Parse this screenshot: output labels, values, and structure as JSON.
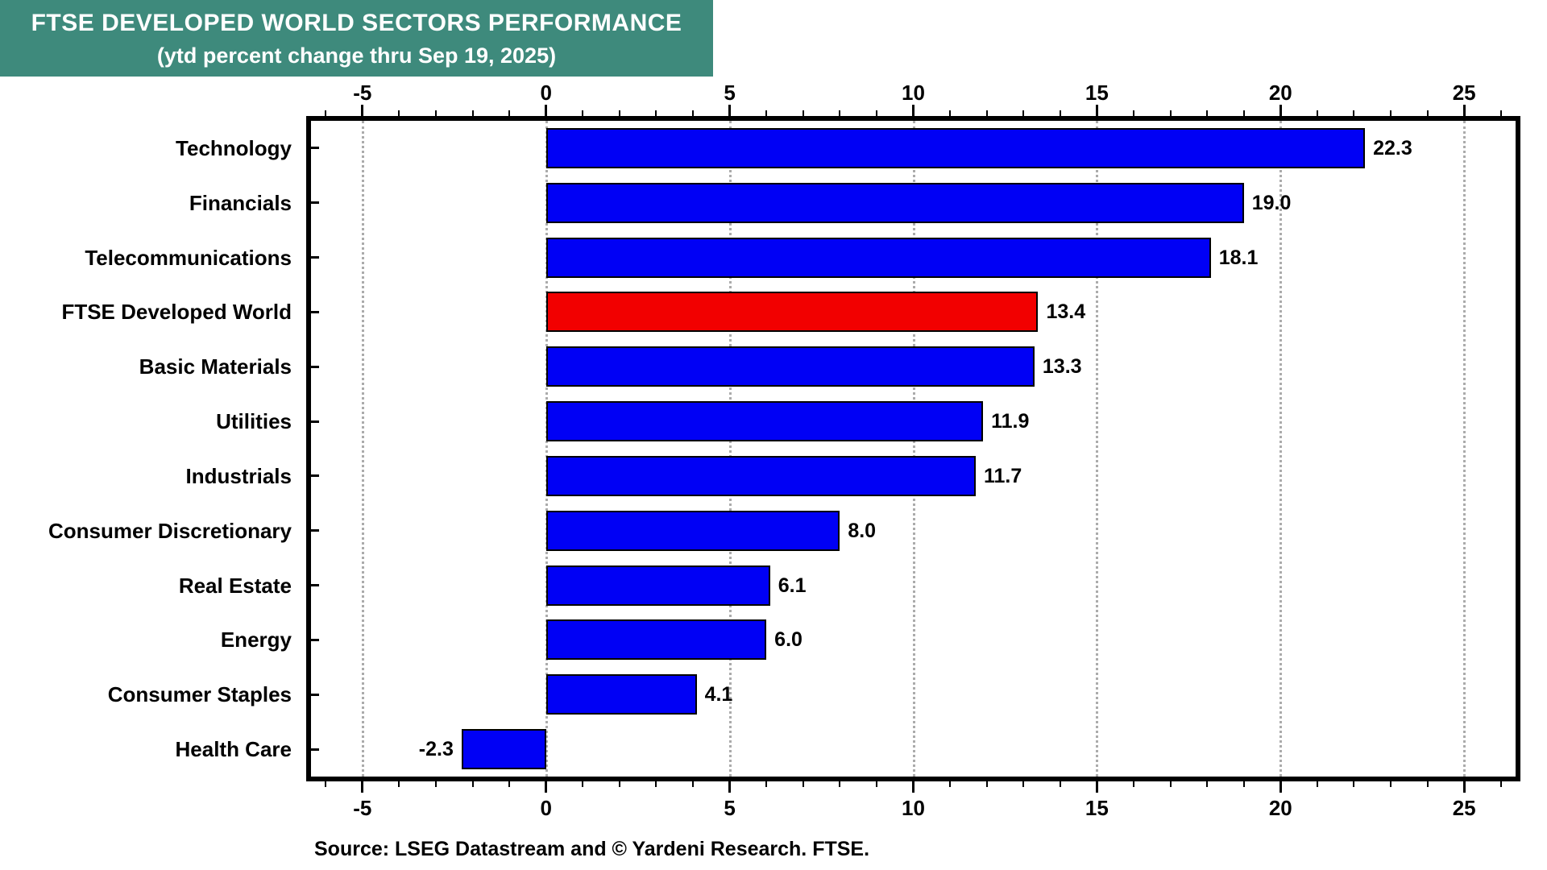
{
  "banner": {
    "title": "FTSE DEVELOPED WORLD SECTORS PERFORMANCE",
    "subtitle": "(ytd percent change thru Sep 19, 2025)",
    "bg_color": "#3E8A7C",
    "text_color": "#FFFFFF"
  },
  "source_text": "Source: LSEG Datastream and © Yardeni Research. FTSE.",
  "chart_data": {
    "type": "bar",
    "orientation": "horizontal",
    "title": "FTSE DEVELOPED WORLD SECTORS PERFORMANCE",
    "subtitle": "(ytd percent change thru Sep 19, 2025)",
    "categories": [
      "Technology",
      "Financials",
      "Telecommunications",
      "FTSE Developed World",
      "Basic Materials",
      "Utilities",
      "Industrials",
      "Consumer Discretionary",
      "Real Estate",
      "Energy",
      "Consumer Staples",
      "Health Care"
    ],
    "values": [
      22.3,
      19.0,
      18.1,
      13.4,
      13.3,
      11.9,
      11.7,
      8.0,
      6.1,
      6.0,
      4.1,
      -2.3
    ],
    "value_labels": [
      "22.3",
      "19.0",
      "18.1",
      "13.4",
      "13.3",
      "11.9",
      "11.7",
      "8.0",
      "6.1",
      "6.0",
      "4.1",
      "-2.3"
    ],
    "highlight_category": "FTSE Developed World",
    "xlabel": "",
    "ylabel": "",
    "x_axis": {
      "min": -6.4,
      "max": 26.4,
      "major_ticks": [
        -5,
        0,
        5,
        10,
        15,
        20,
        25
      ],
      "major_tick_labels": [
        "-5",
        "0",
        "5",
        "10",
        "15",
        "20",
        "25"
      ],
      "minor_tick_step": 1,
      "grid": "dotted",
      "mirrored_top_and_bottom": true
    },
    "legend": "none",
    "colors": {
      "bar": "#0000F5",
      "highlight_bar": "#F20000",
      "bar_border": "#000000",
      "grid": "#ABABAB",
      "axis": "#000000"
    }
  }
}
